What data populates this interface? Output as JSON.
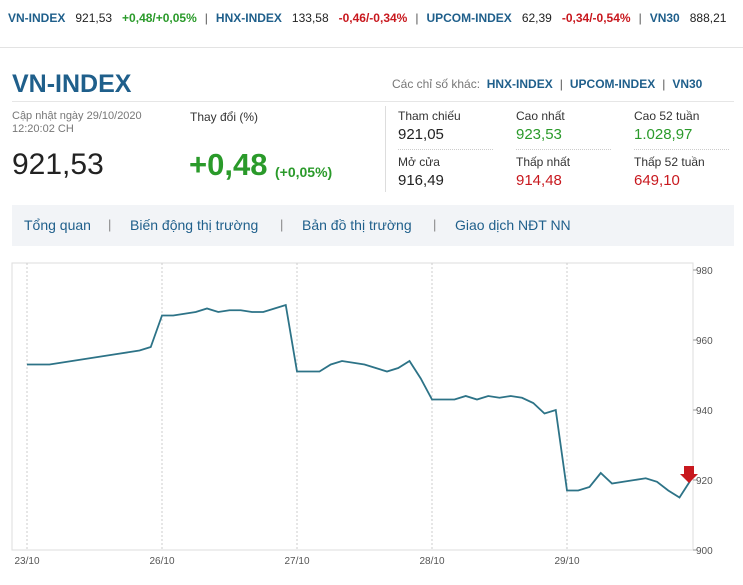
{
  "ticker": [
    {
      "name": "VN-INDEX",
      "value": "921,53",
      "change": "+0,48/+0,05%"
    },
    {
      "name": "HNX-INDEX",
      "value": "133,58",
      "change": "-0,46/-0,34%"
    },
    {
      "name": "UPCOM-INDEX",
      "value": "62,39",
      "change": "-0,34/-0,54%"
    },
    {
      "name": "VN30",
      "value": "888,21"
    }
  ],
  "header": {
    "title": "VN-INDEX",
    "other_label": "Các chỉ số khác:",
    "links": [
      "HNX-INDEX",
      "UPCOM-INDEX",
      "VN30"
    ]
  },
  "update": {
    "label": "Cập nhật ngày 29/10/2020",
    "time": "12:20:02 CH"
  },
  "price": "921,53",
  "change": {
    "label": "Thay đổi (%)",
    "value": "+0,48",
    "percent": "(+0,05%)"
  },
  "stats": [
    {
      "label": "Tham chiếu",
      "value": "921,05"
    },
    {
      "label": "Cao nhất",
      "value": "923,53"
    },
    {
      "label": "Cao 52 tuần",
      "value": "1.028,97"
    },
    {
      "label": "Mở cửa",
      "value": "916,49"
    },
    {
      "label": "Thấp nhất",
      "value": "914,48"
    },
    {
      "label": "Thấp 52 tuần",
      "value": "649,10"
    }
  ],
  "tabs": [
    "Tổng quan",
    "Biến động thị trường",
    "Bản đồ thị trường",
    "Giao dịch NĐT NN"
  ],
  "chart_data": {
    "type": "line",
    "color": "#2d7387",
    "categories": [
      "23/10",
      null,
      null,
      null,
      null,
      null,
      null,
      null,
      null,
      null,
      null,
      null,
      "26/10",
      null,
      null,
      null,
      null,
      null,
      null,
      null,
      null,
      null,
      null,
      null,
      "27/10",
      null,
      null,
      null,
      null,
      null,
      null,
      null,
      null,
      null,
      null,
      null,
      "28/10",
      null,
      null,
      null,
      null,
      null,
      null,
      null,
      null,
      null,
      null,
      null,
      "29/10",
      null,
      null,
      null,
      null,
      null,
      null,
      null,
      null,
      null,
      null,
      null
    ],
    "values": [
      953,
      953,
      953,
      953.5,
      954,
      954.5,
      955,
      955.5,
      956,
      956.5,
      957,
      958,
      967,
      967,
      967.5,
      968,
      969,
      968,
      968.5,
      968.5,
      968,
      968,
      969,
      970,
      951,
      951,
      951,
      953,
      954,
      953.5,
      953,
      952,
      951,
      952,
      954,
      949,
      943,
      943,
      943,
      944,
      943,
      944,
      943.5,
      944,
      943.5,
      942,
      939,
      940,
      917,
      917,
      918,
      922,
      919,
      919.5,
      920,
      920.5,
      919.5,
      917,
      915,
      920
    ],
    "ylim": [
      900,
      980
    ],
    "yticks": [
      900,
      920,
      940,
      960,
      980
    ]
  }
}
